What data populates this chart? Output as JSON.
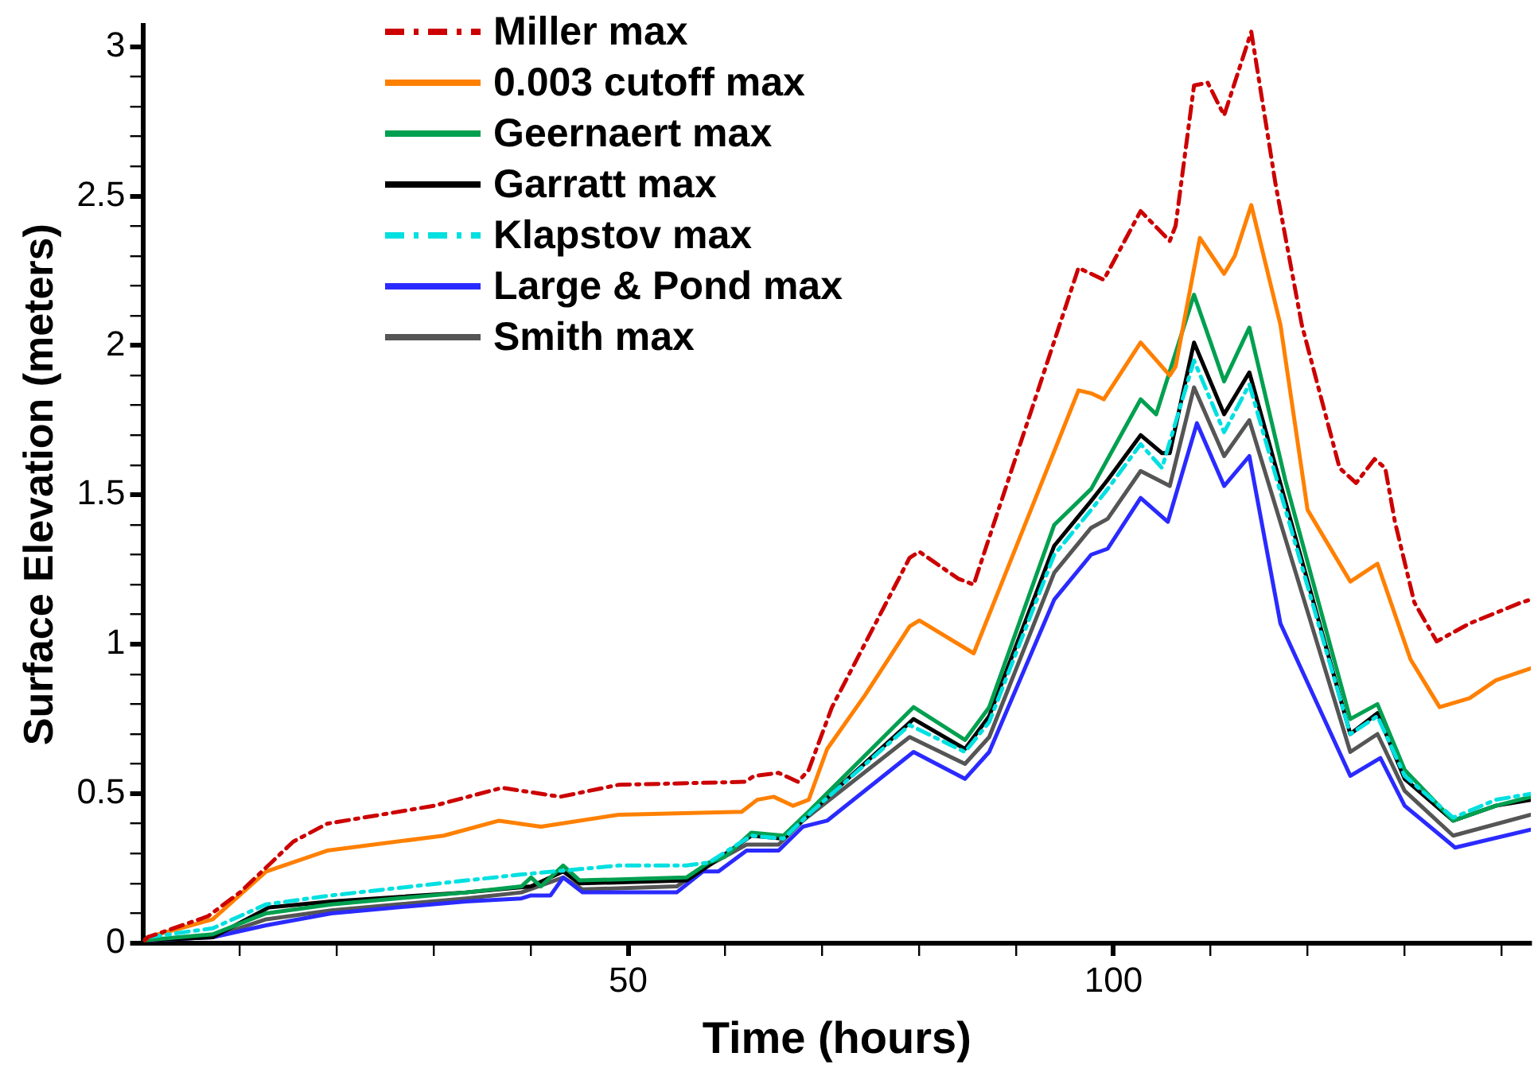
{
  "chart_data": {
    "type": "line",
    "xlabel": "Time (hours)",
    "ylabel": "Surface Elevation (meters)",
    "xlim": [
      0,
      143
    ],
    "ylim": [
      0,
      3.07
    ],
    "xticks": [
      {
        "value": 10,
        "label": null
      },
      {
        "value": 20,
        "label": null
      },
      {
        "value": 30,
        "label": null
      },
      {
        "value": 40,
        "label": null
      },
      50,
      {
        "value": 60,
        "label": null
      },
      {
        "value": 70,
        "label": null
      },
      {
        "value": 80,
        "label": null
      },
      {
        "value": 90,
        "label": null
      },
      100,
      {
        "value": 110,
        "label": null
      },
      {
        "value": 120,
        "label": null
      },
      {
        "value": 130,
        "label": null
      },
      {
        "value": 140,
        "label": null
      }
    ],
    "yticks": [
      0,
      {
        "value": 0.1,
        "label": null
      },
      {
        "value": 0.2,
        "label": null
      },
      {
        "value": 0.3,
        "label": null
      },
      {
        "value": 0.4,
        "label": null
      },
      0.5,
      {
        "value": 0.6,
        "label": null
      },
      {
        "value": 0.7,
        "label": null
      },
      {
        "value": 0.8,
        "label": null
      },
      {
        "value": 0.9,
        "label": null
      },
      1,
      {
        "value": 1.1,
        "label": null
      },
      {
        "value": 1.2,
        "label": null
      },
      {
        "value": 1.3,
        "label": null
      },
      {
        "value": 1.4,
        "label": null
      },
      1.5,
      {
        "value": 1.6,
        "label": null
      },
      {
        "value": 1.7,
        "label": null
      },
      {
        "value": 1.8,
        "label": null
      },
      {
        "value": 1.9,
        "label": null
      },
      2,
      {
        "value": 2.1,
        "label": null
      },
      {
        "value": 2.2,
        "label": null
      },
      {
        "value": 2.3,
        "label": null
      },
      {
        "value": 2.4,
        "label": null
      },
      2.5,
      {
        "value": 2.6,
        "label": null
      },
      {
        "value": 2.7,
        "label": null
      },
      {
        "value": 2.8,
        "label": null
      },
      {
        "value": 2.9,
        "label": null
      },
      3
    ],
    "grid": false,
    "legend": "top left",
    "marker": "none",
    "series": [
      {
        "name": "Miller max",
        "color": "#cc0000",
        "line_style": "dashdot",
        "x": [
          0.2,
          0.5,
          6.7,
          10,
          15.5,
          19,
          30,
          37,
          43,
          49,
          62,
          63,
          65.5,
          67.5,
          68.6,
          71,
          79,
          80,
          84,
          85.6,
          96.4,
          99,
          102.8,
          105.8,
          106.4,
          108.3,
          109.7,
          111.4,
          114.2,
          116.7,
          119.4,
          123.3,
          125,
          126.9,
          128,
          129,
          131,
          133.3,
          136.7,
          142,
          143
        ],
        "values": [
          0.01,
          0.02,
          0.09,
          0.17,
          0.34,
          0.4,
          0.46,
          0.52,
          0.49,
          0.53,
          0.54,
          0.56,
          0.57,
          0.54,
          0.58,
          0.79,
          1.29,
          1.31,
          1.22,
          1.2,
          2.26,
          2.22,
          2.45,
          2.35,
          2.4,
          2.87,
          2.88,
          2.77,
          3.05,
          2.54,
          2.07,
          1.59,
          1.54,
          1.62,
          1.59,
          1.41,
          1.14,
          1.01,
          1.07,
          1.14,
          1.15
        ]
      },
      {
        "name": "0.003 cutoff max",
        "color": "#ff8000",
        "line_style": "solid",
        "x": [
          0.2,
          0.5,
          7.2,
          12.7,
          19,
          31,
          36.7,
          41,
          49,
          61.7,
          63.3,
          65,
          67,
          68.6,
          70.5,
          74.4,
          79,
          80,
          85.6,
          96.4,
          97.7,
          99,
          102.8,
          105.8,
          106.4,
          108.9,
          111.4,
          112.5,
          114.2,
          117.2,
          120,
          124.4,
          127.2,
          130.6,
          133.6,
          136.7,
          139.4,
          143
        ],
        "values": [
          0.01,
          0.02,
          0.08,
          0.24,
          0.31,
          0.36,
          0.41,
          0.39,
          0.43,
          0.44,
          0.48,
          0.49,
          0.46,
          0.48,
          0.65,
          0.83,
          1.06,
          1.08,
          0.97,
          1.85,
          1.84,
          1.82,
          2.01,
          1.9,
          1.93,
          2.36,
          2.24,
          2.3,
          2.47,
          2.07,
          1.45,
          1.21,
          1.27,
          0.95,
          0.79,
          0.82,
          0.88,
          0.92
        ]
      },
      {
        "name": "Geernaert max",
        "color": "#00a050",
        "line_style": "solid",
        "x": [
          0.2,
          7.2,
          12.7,
          19.4,
          33.3,
          39,
          40,
          41,
          43.3,
          45,
          56,
          58.3,
          60,
          62.7,
          66,
          68.9,
          79.4,
          84.7,
          87.2,
          93.9,
          97.7,
          99.4,
          102.8,
          104.4,
          108.3,
          111.4,
          114,
          117.7,
          124.4,
          127.2,
          130,
          135,
          139.4,
          143
        ],
        "values": [
          0.01,
          0.03,
          0.1,
          0.13,
          0.17,
          0.19,
          0.22,
          0.19,
          0.26,
          0.21,
          0.22,
          0.27,
          0.29,
          0.37,
          0.36,
          0.45,
          0.79,
          0.68,
          0.79,
          1.4,
          1.52,
          1.62,
          1.82,
          1.77,
          2.17,
          1.88,
          2.06,
          1.55,
          0.75,
          0.8,
          0.58,
          0.41,
          0.46,
          0.49
        ]
      },
      {
        "name": "Garratt max",
        "color": "#000000",
        "line_style": "solid",
        "x": [
          0.2,
          7.2,
          13,
          19.4,
          33.3,
          40,
          43.3,
          45,
          56,
          58.3,
          62.7,
          66,
          68.9,
          79.4,
          84.7,
          87.2,
          93.9,
          97.7,
          99.4,
          102.8,
          105,
          105.8,
          108.3,
          111.4,
          114,
          124.4,
          127.2,
          130,
          135,
          139.4,
          143
        ],
        "values": [
          0.01,
          0.02,
          0.12,
          0.14,
          0.17,
          0.19,
          0.24,
          0.2,
          0.21,
          0.26,
          0.36,
          0.35,
          0.44,
          0.75,
          0.65,
          0.76,
          1.33,
          1.48,
          1.55,
          1.7,
          1.64,
          1.64,
          2.01,
          1.77,
          1.91,
          0.7,
          0.77,
          0.55,
          0.41,
          0.46,
          0.48
        ]
      },
      {
        "name": "Klapstov max",
        "color": "#00e0e0",
        "line_style": "dashdot",
        "x": [
          0.5,
          7.2,
          12.7,
          19.4,
          33.3,
          39,
          49,
          56,
          58.3,
          62.7,
          66,
          68.9,
          79,
          84.7,
          87.2,
          93.9,
          97.7,
          99.4,
          102.8,
          105,
          108.3,
          111.4,
          114,
          124.4,
          127.2,
          130,
          135,
          139.4,
          143
        ],
        "values": [
          0.02,
          0.05,
          0.13,
          0.16,
          0.21,
          0.23,
          0.26,
          0.26,
          0.27,
          0.36,
          0.35,
          0.44,
          0.73,
          0.64,
          0.74,
          1.3,
          1.45,
          1.52,
          1.67,
          1.59,
          1.95,
          1.71,
          1.87,
          0.7,
          0.76,
          0.56,
          0.42,
          0.48,
          0.5
        ]
      },
      {
        "name": "Large & Pond max",
        "color": "#2a2aff",
        "line_style": "solid",
        "x": [
          0.5,
          7.2,
          12.7,
          19.4,
          33.3,
          39,
          40,
          42,
          43.3,
          45.3,
          55,
          57.7,
          59.3,
          62.2,
          65.5,
          68,
          70.5,
          79.4,
          84.7,
          87.2,
          93.9,
          97.7,
          99.4,
          102.8,
          105.6,
          108.6,
          111.4,
          114,
          117.2,
          124.4,
          127.5,
          130,
          135.2,
          143
        ],
        "values": [
          0.01,
          0.02,
          0.06,
          0.1,
          0.14,
          0.15,
          0.16,
          0.16,
          0.22,
          0.17,
          0.17,
          0.24,
          0.24,
          0.31,
          0.31,
          0.39,
          0.41,
          0.64,
          0.55,
          0.64,
          1.15,
          1.3,
          1.32,
          1.49,
          1.41,
          1.74,
          1.53,
          1.63,
          1.07,
          0.56,
          0.62,
          0.46,
          0.32,
          0.38
        ]
      },
      {
        "name": "Smith max",
        "color": "#555555",
        "line_style": "solid",
        "x": [
          0.5,
          7.2,
          12.7,
          19.4,
          33.3,
          39,
          43.3,
          45.3,
          55,
          57.7,
          62.2,
          65.5,
          68,
          79,
          84.7,
          87.2,
          93.9,
          97.7,
          99.4,
          102.8,
          105.8,
          108.3,
          111.4,
          114,
          124.4,
          127.2,
          130,
          135,
          143
        ],
        "values": [
          0.01,
          0.02,
          0.08,
          0.11,
          0.15,
          0.17,
          0.22,
          0.18,
          0.19,
          0.25,
          0.33,
          0.33,
          0.41,
          0.69,
          0.6,
          0.69,
          1.24,
          1.39,
          1.42,
          1.58,
          1.53,
          1.86,
          1.63,
          1.75,
          0.64,
          0.7,
          0.51,
          0.36,
          0.43
        ]
      }
    ]
  }
}
